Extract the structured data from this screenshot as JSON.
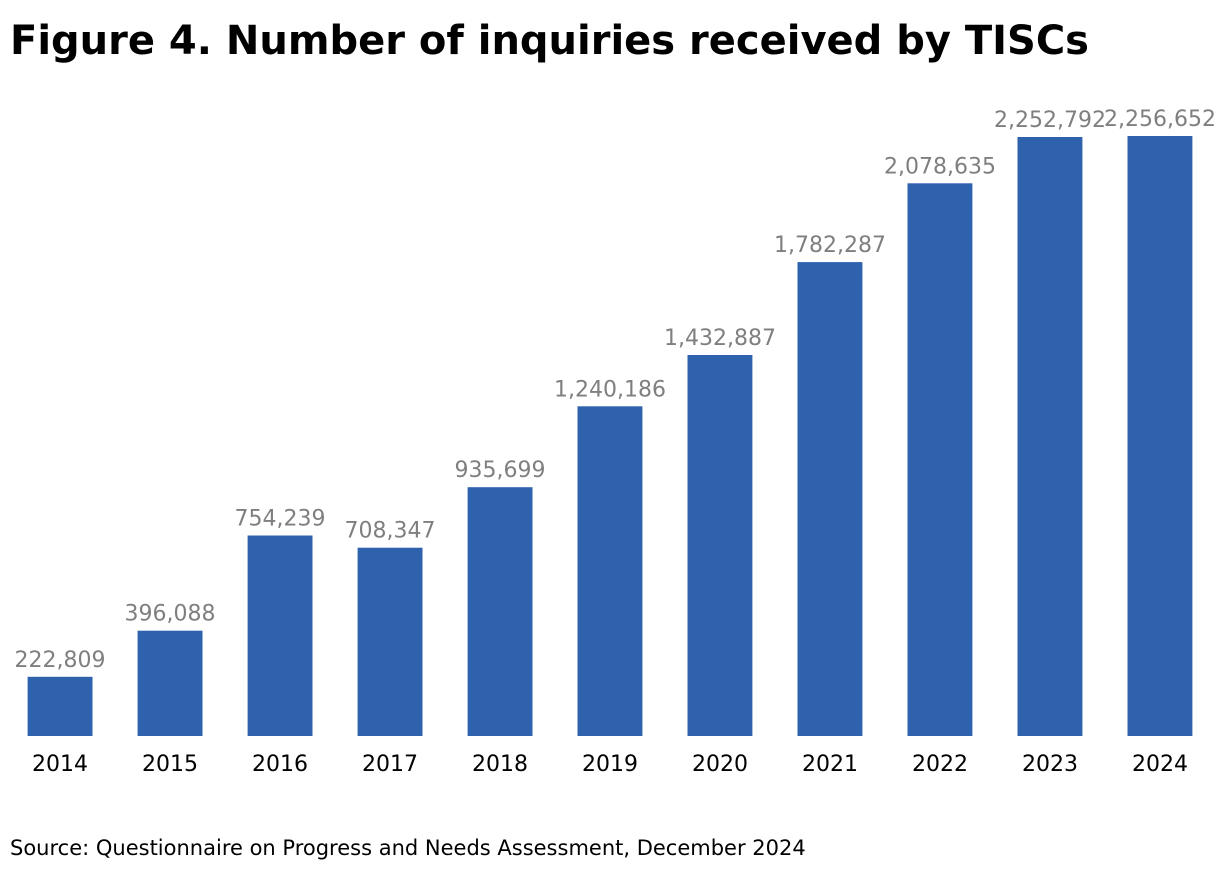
{
  "figure": {
    "title": "Figure 4. Number of inquiries received by TISCs",
    "source": "Source: Questionnaire on Progress and Needs Assessment, December 2024"
  },
  "colors": {
    "bar": "#2F62AD",
    "data_label": "#7F7F7F",
    "tick_label": "#000000"
  },
  "chart_data": {
    "type": "bar",
    "title": "Figure 4. Number of inquiries received by TISCs",
    "xlabel": "",
    "ylabel": "",
    "grid": false,
    "legend": "none",
    "ylim": [
      0,
      2256652
    ],
    "categories": [
      "2014",
      "2015",
      "2016",
      "2017",
      "2018",
      "2019",
      "2020",
      "2021",
      "2022",
      "2023",
      "2024"
    ],
    "values": [
      222809,
      396088,
      754239,
      708347,
      935699,
      1240186,
      1432887,
      1782287,
      2078635,
      2252792,
      2256652
    ],
    "data_labels": [
      "222,809",
      "396,088",
      "754,239",
      "708,347",
      "935,699",
      "1,240,186",
      "1,432,887",
      "1,782,287",
      "2,078,635",
      "2,252,792",
      "2,256,652"
    ]
  }
}
